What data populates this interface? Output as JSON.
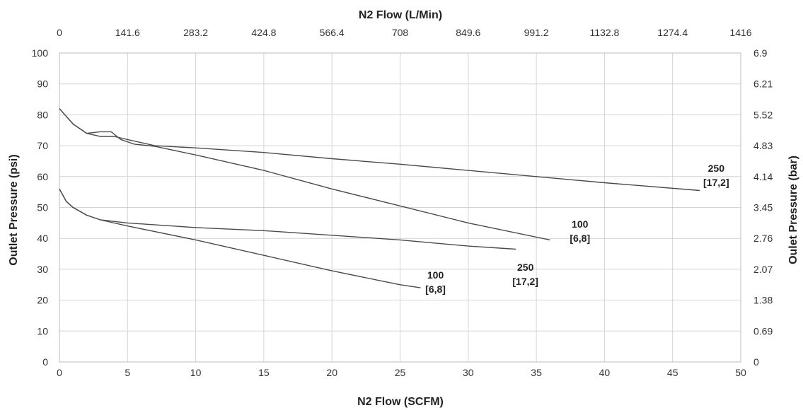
{
  "chart_data": {
    "type": "line",
    "top_axis_title": "N2 Flow (L/Min)",
    "bottom_axis_title": "N2 Flow (SCFM)",
    "left_axis_title": "Outlet Pressure (psi)",
    "right_axis_title": "Oulet Pressure (bar)",
    "xlim": [
      0,
      50
    ],
    "ylim": [
      0,
      100
    ],
    "x_ticks": [
      "0",
      "5",
      "10",
      "15",
      "20",
      "25",
      "30",
      "35",
      "40",
      "45",
      "50"
    ],
    "y_ticks": [
      "0",
      "10",
      "20",
      "30",
      "40",
      "50",
      "60",
      "70",
      "80",
      "90",
      "100"
    ],
    "top_ticks": [
      "0",
      "141.6",
      "283.2",
      "424.8",
      "566.4",
      "708",
      "849.6",
      "991.2",
      "1132.8",
      "1274.4",
      "1416"
    ],
    "right_ticks": [
      "0",
      "0.69",
      "1.38",
      "2.07",
      "2.76",
      "3.45",
      "4.14",
      "4.83",
      "5.52",
      "6.21",
      "6.9"
    ],
    "grid": true,
    "series": [
      {
        "x": [
          0,
          1,
          2,
          3,
          3.8,
          4.5,
          5.5,
          7,
          10,
          15,
          20,
          25,
          30,
          36
        ],
        "y": [
          82,
          77,
          74,
          74.5,
          74.5,
          72,
          70.5,
          69.8,
          67,
          62,
          56,
          50.5,
          45,
          39.5
        ]
      },
      {
        "x": [
          0,
          1,
          2,
          3,
          4,
          5,
          7,
          10,
          15,
          20,
          25,
          30,
          35,
          40,
          47
        ],
        "y": [
          82,
          77,
          74,
          73,
          73,
          72,
          70,
          69.3,
          67.8,
          65.8,
          64,
          62,
          60,
          58,
          55.5
        ]
      },
      {
        "x": [
          0,
          0.5,
          1,
          2,
          3,
          5,
          10,
          15,
          20,
          25,
          26.5
        ],
        "y": [
          56,
          52,
          50,
          47.5,
          46,
          44,
          39.5,
          34.5,
          29.5,
          25,
          24
        ]
      },
      {
        "x": [
          0,
          0.5,
          1,
          2,
          3,
          5,
          10,
          15,
          20,
          25,
          30,
          33.5
        ],
        "y": [
          56,
          52,
          50,
          47.5,
          46,
          45,
          43.5,
          42.5,
          41,
          39.5,
          37.5,
          36.5
        ]
      }
    ],
    "annotations": [
      {
        "line1": "250",
        "line2": "[17,2]",
        "x": 48.2,
        "y": 61.5
      },
      {
        "line1": "100",
        "line2": "[6,8]",
        "x": 38.2,
        "y": 43.5
      },
      {
        "line1": "250",
        "line2": "[17,2]",
        "x": 34.2,
        "y": 29.5
      },
      {
        "line1": "100",
        "line2": "[6,8]",
        "x": 27.6,
        "y": 27
      }
    ]
  }
}
